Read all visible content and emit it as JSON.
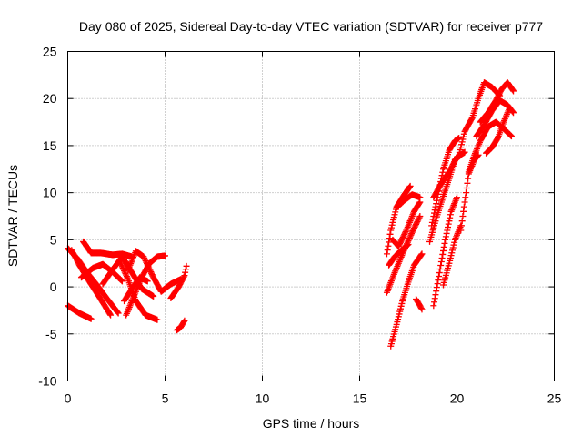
{
  "chart_data": {
    "type": "scatter",
    "title": "Day 080 of 2025, Sidereal Day-to-day VTEC variation (SDTVAR) for receiver p777",
    "xlabel": "GPS time / hours",
    "ylabel": "SDTVAR / TECUs",
    "xlim": [
      0,
      25
    ],
    "ylim": [
      -10,
      25
    ],
    "xticks": [
      0,
      5,
      10,
      15,
      20,
      25
    ],
    "yticks": [
      -10,
      -5,
      0,
      5,
      10,
      15,
      20,
      25
    ],
    "grid": true,
    "legend": "none",
    "marker": "+",
    "color": "#ff0000",
    "series": [
      {
        "segments": [
          [
            [
              0.0,
              4.1
            ],
            [
              0.5,
              3.0
            ],
            [
              1.0,
              1.5
            ],
            [
              1.5,
              0.2
            ],
            [
              2.0,
              -1.2
            ],
            [
              2.6,
              -2.8
            ]
          ],
          [
            [
              0.0,
              -2.0
            ],
            [
              0.6,
              -2.8
            ],
            [
              1.2,
              -3.4
            ]
          ],
          [
            [
              0.2,
              3.9
            ],
            [
              0.6,
              2.3
            ],
            [
              1.1,
              0.6
            ],
            [
              1.6,
              -1.0
            ],
            [
              2.2,
              -3.0
            ]
          ],
          [
            [
              0.8,
              4.8
            ],
            [
              1.2,
              3.6
            ],
            [
              1.7,
              3.6
            ],
            [
              2.3,
              3.4
            ],
            [
              2.8,
              3.5
            ],
            [
              3.3,
              3.2
            ]
          ],
          [
            [
              0.7,
              1.0
            ],
            [
              1.3,
              2.0
            ],
            [
              1.8,
              2.4
            ],
            [
              2.3,
              1.6
            ],
            [
              2.8,
              0.6
            ]
          ],
          [
            [
              1.8,
              0.3
            ],
            [
              2.3,
              1.8
            ],
            [
              2.8,
              3.2
            ],
            [
              3.3,
              1.5
            ],
            [
              3.8,
              -0.2
            ],
            [
              4.4,
              -1.0
            ]
          ],
          [
            [
              2.7,
              2.6
            ],
            [
              3.1,
              0.8
            ],
            [
              3.5,
              -1.5
            ],
            [
              4.0,
              -3.0
            ],
            [
              4.6,
              -3.5
            ]
          ],
          [
            [
              3.0,
              -3.0
            ],
            [
              3.4,
              -1.0
            ],
            [
              3.8,
              1.0
            ],
            [
              4.2,
              2.5
            ],
            [
              4.6,
              3.2
            ],
            [
              5.0,
              3.3
            ]
          ],
          [
            [
              3.1,
              1.8
            ],
            [
              3.5,
              3.8
            ],
            [
              3.9,
              3.2
            ],
            [
              4.4,
              1.0
            ],
            [
              4.8,
              -0.5
            ],
            [
              5.3,
              0.3
            ],
            [
              5.8,
              0.8
            ]
          ],
          [
            [
              2.9,
              -1.5
            ],
            [
              3.3,
              -0.2
            ],
            [
              3.7,
              1.0
            ],
            [
              4.1,
              0.6
            ]
          ],
          [
            [
              5.3,
              -1.2
            ],
            [
              5.7,
              0.0
            ],
            [
              6.0,
              1.2
            ],
            [
              6.1,
              2.2
            ]
          ],
          [
            [
              5.6,
              -4.6
            ],
            [
              5.8,
              -4.3
            ],
            [
              6.0,
              -3.6
            ]
          ],
          [
            [
              16.4,
              3.5
            ],
            [
              16.6,
              6.0
            ],
            [
              16.9,
              8.5
            ],
            [
              17.3,
              9.8
            ],
            [
              17.6,
              10.7
            ]
          ],
          [
            [
              16.7,
              5.0
            ],
            [
              17.0,
              4.3
            ],
            [
              17.4,
              6.0
            ],
            [
              17.8,
              8.0
            ],
            [
              18.1,
              9.0
            ]
          ],
          [
            [
              16.9,
              8.4
            ],
            [
              17.3,
              9.2
            ],
            [
              17.7,
              9.8
            ],
            [
              18.1,
              9.5
            ]
          ],
          [
            [
              16.4,
              -0.6
            ],
            [
              16.8,
              1.5
            ],
            [
              17.2,
              3.5
            ],
            [
              17.7,
              5.8
            ],
            [
              18.1,
              7.5
            ]
          ],
          [
            [
              16.6,
              -6.3
            ],
            [
              16.9,
              -4.0
            ],
            [
              17.2,
              -1.5
            ],
            [
              17.5,
              0.5
            ],
            [
              17.8,
              2.3
            ],
            [
              18.2,
              3.5
            ]
          ],
          [
            [
              16.5,
              2.3
            ],
            [
              16.8,
              3.2
            ],
            [
              17.1,
              3.8
            ],
            [
              17.5,
              4.5
            ]
          ],
          [
            [
              17.9,
              -1.3
            ],
            [
              18.1,
              -2.0
            ],
            [
              18.2,
              -2.4
            ]
          ],
          [
            [
              18.6,
              4.8
            ],
            [
              18.9,
              7.0
            ],
            [
              19.2,
              9.0
            ],
            [
              19.6,
              11.5
            ],
            [
              19.9,
              13.5
            ],
            [
              20.2,
              14.0
            ]
          ],
          [
            [
              18.7,
              6.5
            ],
            [
              19.0,
              9.5
            ],
            [
              19.3,
              12.5
            ],
            [
              19.6,
              14.5
            ],
            [
              19.9,
              15.5
            ],
            [
              20.1,
              15.8
            ]
          ],
          [
            [
              18.8,
              -2.0
            ],
            [
              19.1,
              1.5
            ],
            [
              19.4,
              5.0
            ],
            [
              19.7,
              8.0
            ],
            [
              20.0,
              9.5
            ]
          ],
          [
            [
              19.3,
              0.2
            ],
            [
              19.6,
              2.5
            ],
            [
              19.9,
              5.0
            ],
            [
              20.2,
              6.5
            ]
          ],
          [
            [
              18.8,
              9.5
            ],
            [
              19.2,
              11.0
            ],
            [
              19.6,
              12.2
            ],
            [
              20.0,
              13.8
            ],
            [
              20.4,
              14.3
            ]
          ],
          [
            [
              20.2,
              6.0
            ],
            [
              20.4,
              9.0
            ],
            [
              20.6,
              12.0
            ],
            [
              20.9,
              13.5
            ],
            [
              21.1,
              14.0
            ]
          ],
          [
            [
              20.1,
              14.0
            ],
            [
              20.4,
              16.5
            ],
            [
              20.8,
              18.0
            ],
            [
              21.1,
              20.0
            ],
            [
              21.4,
              21.7
            ],
            [
              21.8,
              21.2
            ],
            [
              22.2,
              20.3
            ]
          ],
          [
            [
              20.6,
              12.2
            ],
            [
              20.9,
              14.0
            ],
            [
              21.2,
              15.5
            ],
            [
              21.6,
              17.0
            ],
            [
              22.0,
              17.5
            ],
            [
              22.4,
              16.8
            ],
            [
              22.8,
              16.0
            ]
          ],
          [
            [
              21.5,
              14.2
            ],
            [
              21.8,
              14.8
            ],
            [
              22.1,
              15.8
            ],
            [
              22.4,
              17.5
            ],
            [
              22.7,
              19.0
            ]
          ],
          [
            [
              21.2,
              17.5
            ],
            [
              21.6,
              18.5
            ],
            [
              22.0,
              19.8
            ],
            [
              22.3,
              21.0
            ],
            [
              22.6,
              21.7
            ],
            [
              22.9,
              20.8
            ]
          ],
          [
            [
              21.0,
              16.0
            ],
            [
              21.4,
              17.2
            ],
            [
              21.8,
              18.7
            ],
            [
              22.2,
              19.8
            ],
            [
              22.6,
              19.3
            ],
            [
              22.9,
              18.5
            ]
          ]
        ]
      }
    ]
  }
}
